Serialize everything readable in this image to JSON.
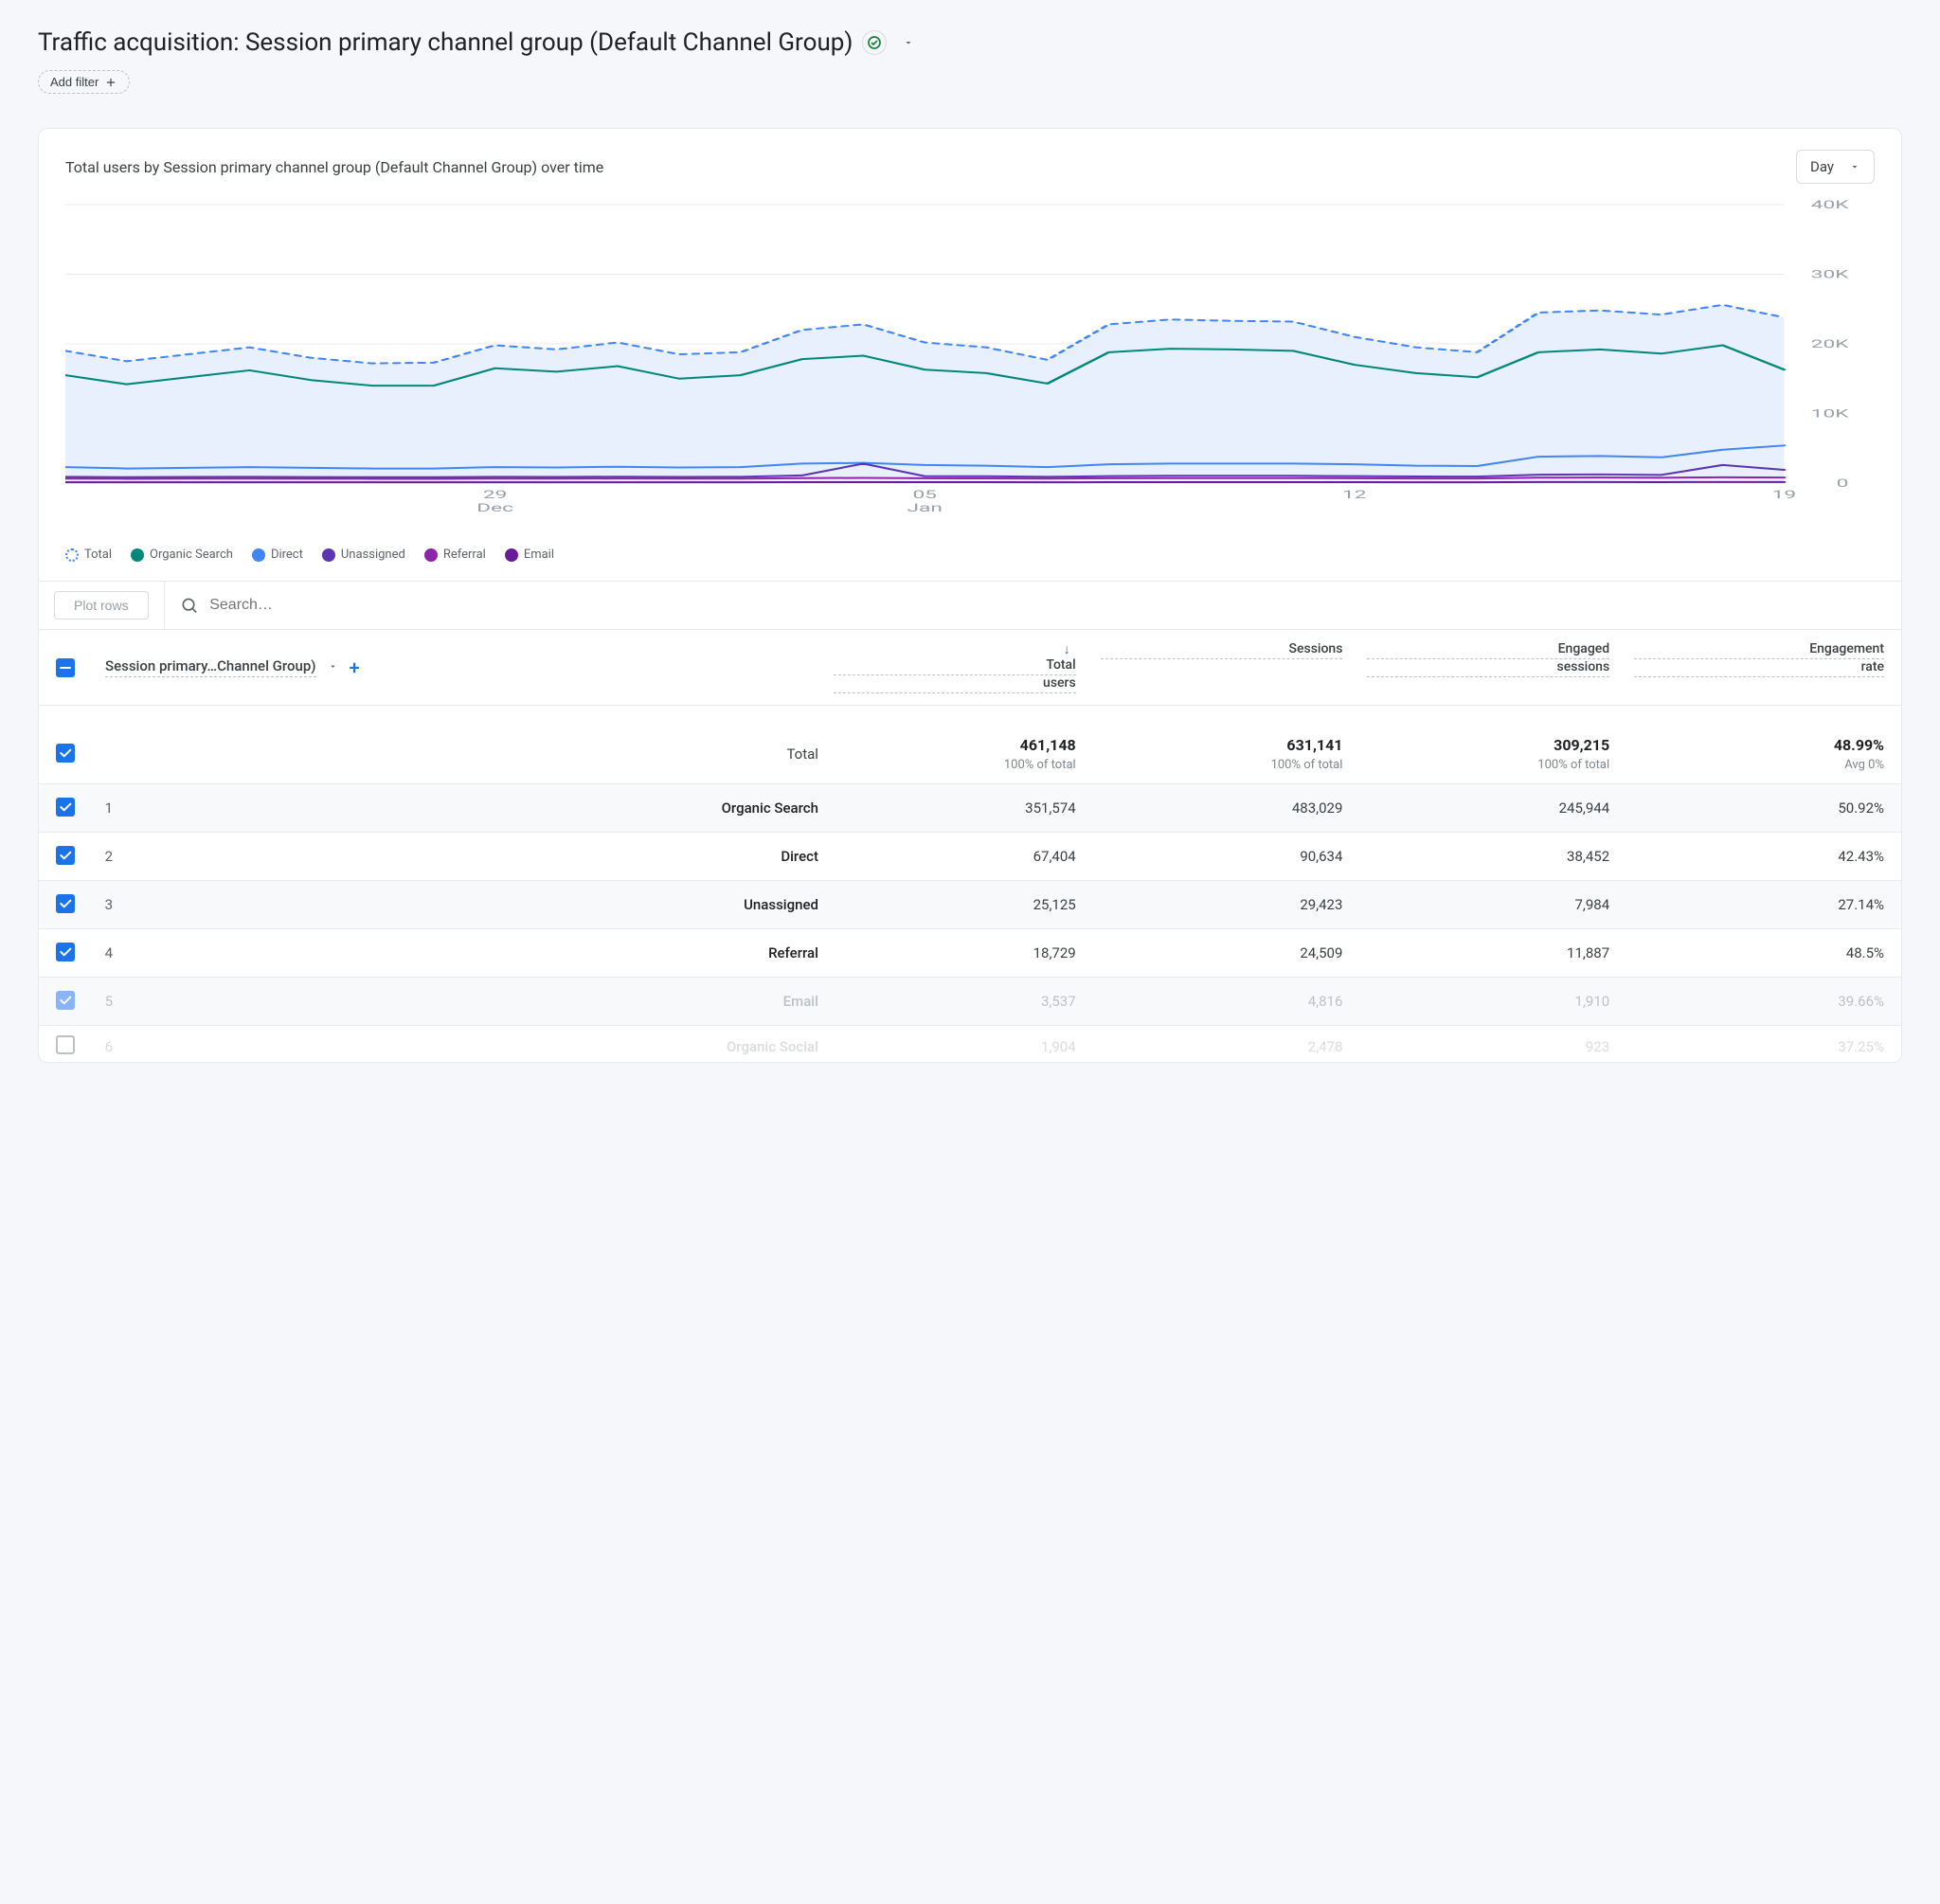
{
  "page": {
    "title": "Traffic acquisition: Session primary channel group (Default Channel Group)",
    "add_filter_label": "Add filter"
  },
  "card": {
    "subtitle": "Total users by Session primary channel group (Default Channel Group) over time",
    "granularity": "Day"
  },
  "chart": {
    "type": "line",
    "background_color": "#ffffff",
    "grid_color": "#e8eaed",
    "axis_label_color": "#9aa0a6",
    "axis_fontsize": 12,
    "ylim": [
      0,
      40000
    ],
    "ytick_step": 10000,
    "ytick_labels": [
      "0",
      "10K",
      "20K",
      "30K",
      "40K"
    ],
    "x_count": 29,
    "x_ticks": [
      {
        "index": 7,
        "label_top": "29",
        "label_bottom": "Dec"
      },
      {
        "index": 14,
        "label_top": "05",
        "label_bottom": "Jan"
      },
      {
        "index": 21,
        "label_top": "12",
        "label_bottom": ""
      },
      {
        "index": 28,
        "label_top": "19",
        "label_bottom": ""
      }
    ],
    "series": [
      {
        "name": "Total",
        "color": "#4285f4",
        "dashed": true,
        "fill": "#e8f0fe",
        "width": 2,
        "values": [
          19000,
          17500,
          18500,
          19500,
          18000,
          17200,
          17300,
          19800,
          19200,
          20200,
          18500,
          18800,
          22000,
          22800,
          20200,
          19500,
          17700,
          22800,
          23500,
          23300,
          23200,
          21000,
          19500,
          18800,
          24500,
          24800,
          24200,
          25600,
          23800
        ]
      },
      {
        "name": "Organic Search",
        "color": "#00897b",
        "dashed": false,
        "width": 2,
        "values": [
          15500,
          14200,
          15200,
          16200,
          14800,
          14000,
          14000,
          16500,
          16000,
          16800,
          15000,
          15500,
          17800,
          18300,
          16300,
          15800,
          14300,
          18800,
          19300,
          19200,
          19000,
          17000,
          15800,
          15200,
          18800,
          19200,
          18600,
          19800,
          16300
        ]
      },
      {
        "name": "Direct",
        "color": "#4285f4",
        "dashed": false,
        "width": 2,
        "values": [
          2300,
          2100,
          2200,
          2300,
          2200,
          2100,
          2100,
          2300,
          2250,
          2350,
          2250,
          2300,
          2800,
          2900,
          2600,
          2500,
          2300,
          2700,
          2800,
          2800,
          2800,
          2700,
          2500,
          2450,
          3800,
          3900,
          3700,
          4800,
          5400
        ]
      },
      {
        "name": "Unassigned",
        "color": "#5e35b1",
        "dashed": false,
        "width": 2,
        "values": [
          900,
          850,
          880,
          900,
          870,
          850,
          850,
          900,
          880,
          920,
          880,
          900,
          1100,
          2800,
          1000,
          980,
          900,
          1000,
          1050,
          1050,
          1050,
          1000,
          950,
          930,
          1200,
          1250,
          1180,
          2600,
          1900
        ]
      },
      {
        "name": "Referral",
        "color": "#8e24aa",
        "dashed": false,
        "width": 2,
        "values": [
          650,
          620,
          640,
          650,
          630,
          620,
          620,
          650,
          640,
          660,
          640,
          650,
          720,
          750,
          700,
          680,
          640,
          700,
          720,
          720,
          720,
          700,
          670,
          660,
          780,
          800,
          770,
          830,
          800
        ]
      },
      {
        "name": "Email",
        "color": "#6a1b9a",
        "dashed": false,
        "width": 2,
        "values": [
          120,
          115,
          118,
          120,
          117,
          115,
          115,
          120,
          118,
          122,
          118,
          120,
          135,
          140,
          130,
          128,
          120,
          130,
          135,
          135,
          135,
          130,
          126,
          124,
          145,
          148,
          144,
          152,
          148
        ]
      }
    ]
  },
  "legend": [
    {
      "label": "Total",
      "color": "#4285f4",
      "dotted": true
    },
    {
      "label": "Organic Search",
      "color": "#00897b",
      "dotted": false
    },
    {
      "label": "Direct",
      "color": "#4285f4",
      "dotted": false
    },
    {
      "label": "Unassigned",
      "color": "#5e35b1",
      "dotted": false
    },
    {
      "label": "Referral",
      "color": "#8e24aa",
      "dotted": false
    },
    {
      "label": "Email",
      "color": "#6a1b9a",
      "dotted": false
    }
  ],
  "toolbar": {
    "plot_rows_label": "Plot rows",
    "search_placeholder": "Search…"
  },
  "table": {
    "dimension_label": "Session primary…Channel Group)",
    "columns": [
      {
        "line1": "Total",
        "line2": "users"
      },
      {
        "line1": "Sessions",
        "line2": ""
      },
      {
        "line1": "Engaged",
        "line2": "sessions"
      },
      {
        "line1": "Engagement",
        "line2": "rate"
      }
    ],
    "total_row": {
      "label": "Total",
      "cells": [
        {
          "value": "461,148",
          "sub": "100% of total"
        },
        {
          "value": "631,141",
          "sub": "100% of total"
        },
        {
          "value": "309,215",
          "sub": "100% of total"
        },
        {
          "value": "48.99%",
          "sub": "Avg 0%"
        }
      ]
    },
    "rows": [
      {
        "idx": "1",
        "name": "Organic Search",
        "checked": true,
        "faded": false,
        "cells": [
          "351,574",
          "483,029",
          "245,944",
          "50.92%"
        ]
      },
      {
        "idx": "2",
        "name": "Direct",
        "checked": true,
        "faded": false,
        "cells": [
          "67,404",
          "90,634",
          "38,452",
          "42.43%"
        ]
      },
      {
        "idx": "3",
        "name": "Unassigned",
        "checked": true,
        "faded": false,
        "cells": [
          "25,125",
          "29,423",
          "7,984",
          "27.14%"
        ]
      },
      {
        "idx": "4",
        "name": "Referral",
        "checked": true,
        "faded": false,
        "cells": [
          "18,729",
          "24,509",
          "11,887",
          "48.5%"
        ]
      },
      {
        "idx": "5",
        "name": "Email",
        "checked": true,
        "faded": true,
        "cells": [
          "3,537",
          "4,816",
          "1,910",
          "39.66%"
        ]
      },
      {
        "idx": "6",
        "name": "Organic Social",
        "checked": false,
        "faded": false,
        "truncated": true,
        "cells": [
          "1,904",
          "2,478",
          "923",
          "37.25%"
        ]
      }
    ]
  }
}
